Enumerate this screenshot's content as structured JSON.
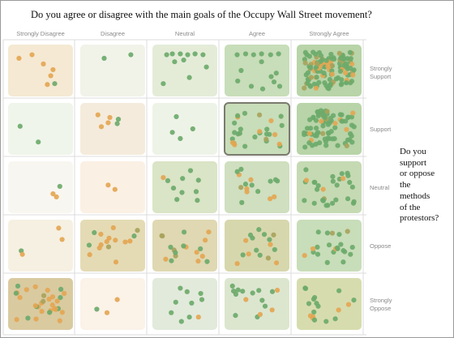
{
  "title": "Do you agree or disagree with the main goals of the Occupy Wall Street movement?",
  "side_question": [
    "Do you",
    "support",
    "or oppose",
    "the",
    "methods",
    "of the",
    "protestors?"
  ],
  "colors": {
    "green_dot": "#6daa6b",
    "orange_dot": "#e4a653",
    "olive_dot": "#a8a35c",
    "selected_border": "#7b7b6f",
    "grid_line": "#dcdcdc"
  },
  "chart_data": {
    "type": "scatter",
    "title": "Do you agree or disagree with the main goals of the Occupy Wall Street movement?",
    "columns": [
      "Strongly Disagree",
      "Disagree",
      "Neutral",
      "Agree",
      "Strongly Agree"
    ],
    "rows": [
      "Strongly Support",
      "Support",
      "Neutral",
      "Oppose",
      "Strongly Oppose"
    ],
    "row_labels": [
      [
        "Strongly",
        "Support"
      ],
      [
        "Support"
      ],
      [
        "Neutral"
      ],
      [
        "Oppose"
      ],
      [
        "Strongly",
        "Oppose"
      ]
    ],
    "selected_cell": {
      "row": 1,
      "col": 3
    },
    "cells": [
      [
        {
          "tint": "#f5e9d3",
          "dots": [
            [
              "o",
              0.12,
              0.22
            ],
            [
              "o",
              0.35,
              0.14
            ],
            [
              "o",
              0.55,
              0.35
            ],
            [
              "o",
              0.72,
              0.48
            ],
            [
              "o",
              0.68,
              0.62
            ],
            [
              "g",
              0.75,
              0.8
            ],
            [
              "o",
              0.62,
              0.82
            ]
          ]
        },
        {
          "tint": "#f1f3e9",
          "dots": [
            [
              "g",
              0.35,
              0.22
            ],
            [
              "g",
              0.82,
              0.14
            ]
          ]
        },
        {
          "tint": "#e4ecd8",
          "dots": [
            [
              "g",
              0.18,
              0.14
            ],
            [
              "g",
              0.28,
              0.12
            ],
            [
              "g",
              0.42,
              0.12
            ],
            [
              "g",
              0.55,
              0.14
            ],
            [
              "g",
              0.68,
              0.12
            ],
            [
              "g",
              0.82,
              0.14
            ],
            [
              "g",
              0.32,
              0.3
            ],
            [
              "g",
              0.48,
              0.26
            ],
            [
              "g",
              0.88,
              0.42
            ],
            [
              "g",
              0.58,
              0.66
            ],
            [
              "g",
              0.12,
              0.8
            ]
          ]
        },
        {
          "tint": "#c8ddb9",
          "dots": [
            [
              "g",
              0.15,
              0.14
            ],
            [
              "g",
              0.3,
              0.12
            ],
            [
              "g",
              0.44,
              0.14
            ],
            [
              "g",
              0.58,
              0.12
            ],
            [
              "g",
              0.74,
              0.14
            ],
            [
              "g",
              0.88,
              0.12
            ],
            [
              "g",
              0.58,
              0.3
            ],
            [
              "g",
              0.22,
              0.5
            ],
            [
              "g",
              0.75,
              0.64
            ],
            [
              "g",
              0.84,
              0.56
            ],
            [
              "g",
              0.16,
              0.74
            ],
            [
              "g",
              0.8,
              0.76
            ],
            [
              "g",
              0.9,
              0.86
            ],
            [
              "g",
              0.4,
              0.86
            ],
            [
              "g",
              0.6,
              0.92
            ]
          ]
        },
        {
          "tint": "#b8d4a8",
          "count": 120,
          "seed": 7,
          "mix": [
            0.75,
            0.15,
            0.1
          ]
        }
      ],
      [
        {
          "tint": "#eff5ea",
          "dots": [
            [
              "g",
              0.14,
              0.44
            ],
            [
              "g",
              0.46,
              0.8
            ]
          ]
        },
        {
          "tint": "#f4ebdc",
          "dots": [
            [
              "o",
              0.24,
              0.18
            ],
            [
              "o",
              0.45,
              0.24
            ],
            [
              "g",
              0.6,
              0.28
            ],
            [
              "o",
              0.42,
              0.36
            ],
            [
              "g",
              0.58,
              0.38
            ],
            [
              "o",
              0.3,
              0.45
            ]
          ]
        },
        {
          "tint": "#eef3e7",
          "dots": [
            [
              "g",
              0.35,
              0.22
            ],
            [
              "g",
              0.28,
              0.58
            ],
            [
              "g",
              0.42,
              0.72
            ],
            [
              "g",
              0.64,
              0.5
            ]
          ]
        },
        {
          "tint": "#c8ddb9",
          "count": 28,
          "seed": 13,
          "mix": [
            0.7,
            0.2,
            0.1
          ]
        },
        {
          "tint": "#b8d4a8",
          "count": 80,
          "seed": 21,
          "mix": [
            0.78,
            0.12,
            0.1
          ]
        }
      ],
      [
        {
          "tint": "#f8f6f0",
          "dots": [
            [
              "g",
              0.84,
              0.48
            ],
            [
              "o",
              0.72,
              0.65
            ],
            [
              "o",
              0.78,
              0.72
            ]
          ]
        },
        {
          "tint": "#fbf0e4",
          "dots": [
            [
              "o",
              0.42,
              0.45
            ],
            [
              "o",
              0.54,
              0.55
            ]
          ]
        },
        {
          "tint": "#dae4c6",
          "dots": [
            [
              "g",
              0.6,
              0.12
            ],
            [
              "g",
              0.2,
              0.35
            ],
            [
              "g",
              0.46,
              0.3
            ],
            [
              "g",
              0.74,
              0.34
            ],
            [
              "o",
              0.12,
              0.28
            ],
            [
              "g",
              0.3,
              0.52
            ],
            [
              "g",
              0.45,
              0.62
            ],
            [
              "g",
              0.7,
              0.6
            ],
            [
              "g",
              0.36,
              0.78
            ],
            [
              "g",
              0.72,
              0.8
            ]
          ]
        },
        {
          "tint": "#cfdfbf",
          "count": 16,
          "seed": 33,
          "mix": [
            0.7,
            0.2,
            0.1
          ]
        },
        {
          "tint": "#c5dab3",
          "count": 30,
          "seed": 41,
          "mix": [
            0.8,
            0.1,
            0.1
          ]
        }
      ],
      [
        {
          "tint": "#f6f0e2",
          "dots": [
            [
              "o",
              0.82,
              0.1
            ],
            [
              "o",
              0.88,
              0.36
            ],
            [
              "g",
              0.16,
              0.62
            ],
            [
              "o",
              0.18,
              0.7
            ]
          ]
        },
        {
          "tint": "#e4dbb5",
          "count": 16,
          "seed": 55,
          "mix": [
            0.25,
            0.55,
            0.2
          ]
        },
        {
          "tint": "#dfd8b2",
          "count": 18,
          "seed": 61,
          "mix": [
            0.4,
            0.45,
            0.15
          ]
        },
        {
          "tint": "#d7d7ad",
          "count": 16,
          "seed": 69,
          "mix": [
            0.45,
            0.4,
            0.15
          ]
        },
        {
          "tint": "#c8ddb9",
          "count": 22,
          "seed": 77,
          "mix": [
            0.7,
            0.2,
            0.1
          ]
        }
      ],
      [
        {
          "tint": "#d9caa0",
          "count": 32,
          "seed": 83,
          "mix": [
            0.25,
            0.65,
            0.1
          ]
        },
        {
          "tint": "#fbf2e8",
          "dots": [
            [
              "o",
              0.58,
              0.4
            ],
            [
              "g",
              0.22,
              0.62
            ],
            [
              "o",
              0.4,
              0.7
            ]
          ]
        },
        {
          "tint": "#e2eadb",
          "dots": [
            [
              "g",
              0.42,
              0.14
            ],
            [
              "g",
              0.54,
              0.22
            ],
            [
              "g",
              0.78,
              0.26
            ],
            [
              "g",
              0.34,
              0.46
            ],
            [
              "g",
              0.62,
              0.48
            ],
            [
              "g",
              0.8,
              0.4
            ],
            [
              "g",
              0.26,
              0.7
            ],
            [
              "g",
              0.58,
              0.8
            ],
            [
              "o",
              0.74,
              0.8
            ],
            [
              "g",
              0.44,
              0.9
            ]
          ]
        },
        {
          "tint": "#dce6cf",
          "count": 16,
          "seed": 97,
          "mix": [
            0.65,
            0.25,
            0.1
          ]
        },
        {
          "tint": "#d7dcae",
          "count": 18,
          "seed": 101,
          "mix": [
            0.55,
            0.35,
            0.1
          ]
        }
      ]
    ]
  }
}
